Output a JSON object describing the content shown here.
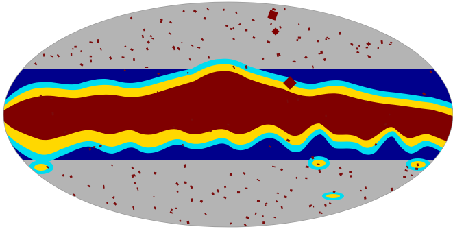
{
  "map": {
    "projection": "mollweide",
    "colors": {
      "background": "#ffffff",
      "sky": "#b4b4b4",
      "band": "#00008c",
      "contour_outer": "#00dcf0",
      "contour_mid": "#ffd800",
      "plane": "#800000",
      "point_sources": "#7a0c0c"
    },
    "regions": [
      {
        "name": "high-latitude-sky",
        "color_key": "sky"
      },
      {
        "name": "low-latitude-band",
        "color_key": "band"
      },
      {
        "name": "outer-contour",
        "color_key": "contour_outer"
      },
      {
        "name": "middle-contour",
        "color_key": "contour_mid"
      },
      {
        "name": "galactic-plane-mask",
        "color_key": "plane"
      },
      {
        "name": "point-source-mask",
        "color_key": "point_sources"
      }
    ],
    "point_source_count": 210
  }
}
